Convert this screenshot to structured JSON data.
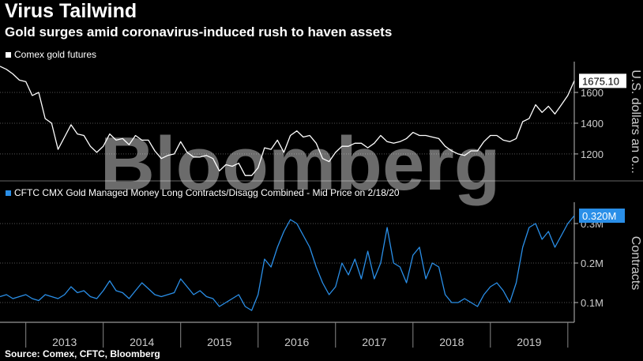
{
  "header": {
    "title": "Virus Tailwind",
    "subtitle": "Gold surges amid coronavirus-induced rush to haven assets"
  },
  "source": "Source: Comex, CFTC, Bloomberg",
  "watermark": "Bloomberg",
  "colors": {
    "gold": "#ffffff",
    "cftc": "#2a8fe8",
    "background": "#000000",
    "axis": "#bbbbbb"
  },
  "chart_data": [
    {
      "type": "line",
      "series": [
        {
          "name": "Comex gold futures",
          "x": [
            "2012-09",
            "2012-10",
            "2012-11",
            "2012-12",
            "2013-01",
            "2013-02",
            "2013-03",
            "2013-04",
            "2013-05",
            "2013-06",
            "2013-07",
            "2013-08",
            "2013-09",
            "2013-10",
            "2013-11",
            "2013-12",
            "2014-01",
            "2014-02",
            "2014-03",
            "2014-04",
            "2014-05",
            "2014-06",
            "2014-07",
            "2014-08",
            "2014-09",
            "2014-10",
            "2014-11",
            "2014-12",
            "2015-01",
            "2015-02",
            "2015-03",
            "2015-04",
            "2015-05",
            "2015-06",
            "2015-07",
            "2015-08",
            "2015-09",
            "2015-10",
            "2015-11",
            "2015-12",
            "2016-01",
            "2016-02",
            "2016-03",
            "2016-04",
            "2016-05",
            "2016-06",
            "2016-07",
            "2016-08",
            "2016-09",
            "2016-10",
            "2016-11",
            "2016-12",
            "2017-01",
            "2017-02",
            "2017-03",
            "2017-04",
            "2017-05",
            "2017-06",
            "2017-07",
            "2017-08",
            "2017-09",
            "2017-10",
            "2017-11",
            "2017-12",
            "2018-01",
            "2018-02",
            "2018-03",
            "2018-04",
            "2018-05",
            "2018-06",
            "2018-07",
            "2018-08",
            "2018-09",
            "2018-10",
            "2018-11",
            "2018-12",
            "2019-01",
            "2019-02",
            "2019-03",
            "2019-04",
            "2019-05",
            "2019-06",
            "2019-07",
            "2019-08",
            "2019-09",
            "2019-10",
            "2019-11",
            "2019-12",
            "2020-01",
            "2020-02"
          ],
          "values": [
            1770,
            1750,
            1720,
            1680,
            1670,
            1580,
            1600,
            1430,
            1400,
            1230,
            1310,
            1390,
            1330,
            1320,
            1250,
            1210,
            1250,
            1330,
            1290,
            1300,
            1260,
            1320,
            1290,
            1290,
            1220,
            1170,
            1190,
            1200,
            1280,
            1210,
            1180,
            1180,
            1190,
            1170,
            1090,
            1130,
            1120,
            1140,
            1060,
            1060,
            1110,
            1240,
            1230,
            1290,
            1210,
            1320,
            1350,
            1310,
            1320,
            1270,
            1170,
            1150,
            1210,
            1250,
            1250,
            1270,
            1270,
            1240,
            1270,
            1320,
            1280,
            1270,
            1280,
            1300,
            1340,
            1320,
            1320,
            1310,
            1300,
            1250,
            1220,
            1200,
            1190,
            1220,
            1220,
            1280,
            1320,
            1320,
            1290,
            1280,
            1300,
            1410,
            1430,
            1520,
            1470,
            1510,
            1460,
            1520,
            1580,
            1675.1
          ]
        }
      ],
      "y_ticks": [
        "1200",
        "1400",
        "1600"
      ],
      "ylim": [
        1030,
        1790
      ],
      "last_value_label": "1675.10",
      "ylabel": "U.S. dollars an o..."
    },
    {
      "type": "line",
      "series": [
        {
          "name": "CFTC CMX Gold Managed Money Long Contracts/Disagg Combined - Mid Price on 2/18/20",
          "x": [
            "2012-09",
            "2012-10",
            "2012-11",
            "2012-12",
            "2013-01",
            "2013-02",
            "2013-03",
            "2013-04",
            "2013-05",
            "2013-06",
            "2013-07",
            "2013-08",
            "2013-09",
            "2013-10",
            "2013-11",
            "2013-12",
            "2014-01",
            "2014-02",
            "2014-03",
            "2014-04",
            "2014-05",
            "2014-06",
            "2014-07",
            "2014-08",
            "2014-09",
            "2014-10",
            "2014-11",
            "2014-12",
            "2015-01",
            "2015-02",
            "2015-03",
            "2015-04",
            "2015-05",
            "2015-06",
            "2015-07",
            "2015-08",
            "2015-09",
            "2015-10",
            "2015-11",
            "2015-12",
            "2016-01",
            "2016-02",
            "2016-03",
            "2016-04",
            "2016-05",
            "2016-06",
            "2016-07",
            "2016-08",
            "2016-09",
            "2016-10",
            "2016-11",
            "2016-12",
            "2017-01",
            "2017-02",
            "2017-03",
            "2017-04",
            "2017-05",
            "2017-06",
            "2017-07",
            "2017-08",
            "2017-09",
            "2017-10",
            "2017-11",
            "2017-12",
            "2018-01",
            "2018-02",
            "2018-03",
            "2018-04",
            "2018-05",
            "2018-06",
            "2018-07",
            "2018-08",
            "2018-09",
            "2018-10",
            "2018-11",
            "2018-12",
            "2019-01",
            "2019-02",
            "2019-03",
            "2019-04",
            "2019-05",
            "2019-06",
            "2019-07",
            "2019-08",
            "2019-09",
            "2019-10",
            "2019-11",
            "2019-12",
            "2020-01",
            "2020-02"
          ],
          "values": [
            0.115,
            0.12,
            0.11,
            0.115,
            0.12,
            0.11,
            0.105,
            0.12,
            0.115,
            0.11,
            0.12,
            0.14,
            0.125,
            0.13,
            0.115,
            0.11,
            0.13,
            0.155,
            0.13,
            0.125,
            0.11,
            0.13,
            0.15,
            0.135,
            0.12,
            0.115,
            0.12,
            0.125,
            0.16,
            0.14,
            0.12,
            0.13,
            0.115,
            0.11,
            0.09,
            0.1,
            0.11,
            0.12,
            0.09,
            0.08,
            0.12,
            0.21,
            0.19,
            0.24,
            0.28,
            0.31,
            0.3,
            0.27,
            0.24,
            0.19,
            0.15,
            0.12,
            0.14,
            0.2,
            0.17,
            0.21,
            0.16,
            0.23,
            0.16,
            0.2,
            0.29,
            0.2,
            0.19,
            0.15,
            0.22,
            0.24,
            0.16,
            0.2,
            0.19,
            0.12,
            0.1,
            0.1,
            0.11,
            0.1,
            0.09,
            0.12,
            0.14,
            0.15,
            0.13,
            0.1,
            0.15,
            0.24,
            0.29,
            0.3,
            0.26,
            0.28,
            0.24,
            0.27,
            0.3,
            0.32
          ]
        }
      ],
      "y_ticks": [
        "0.1M",
        "0.2M",
        "0.3M"
      ],
      "ylim": [
        0.05,
        0.35
      ],
      "last_value_label": "0.320M",
      "ylabel": "Contracts",
      "x_ticks": [
        "2013",
        "2014",
        "2015",
        "2016",
        "2017",
        "2018",
        "2019"
      ]
    }
  ]
}
